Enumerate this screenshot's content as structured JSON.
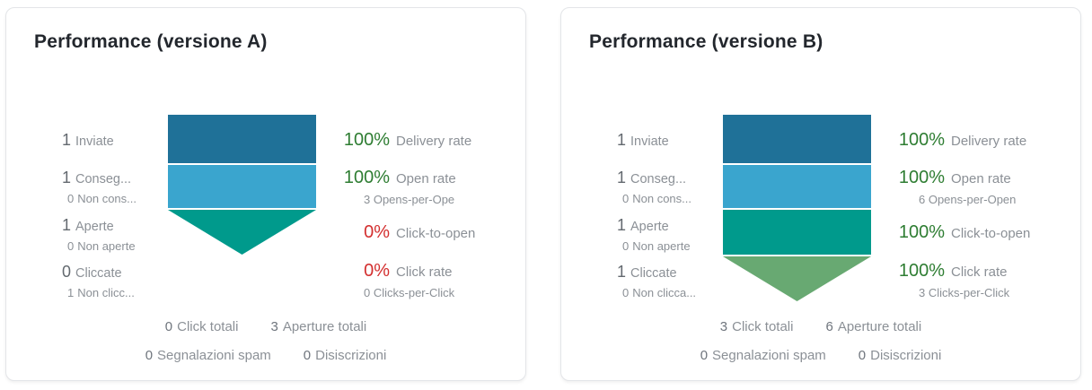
{
  "colors": {
    "positive": "#2e7d32",
    "negative": "#d32f2f",
    "funnel_blue_dark": "#1f7198",
    "funnel_blue_light": "#3aa5ce",
    "funnel_teal": "#009a8c",
    "funnel_green": "#68a972"
  },
  "cards": [
    {
      "title": "Performance (versione A)",
      "left_stats": [
        {
          "value": "1",
          "label": "Inviate"
        },
        {
          "value": "1",
          "label": "Conseg...",
          "sub_value": "0",
          "sub_label": "Non cons..."
        },
        {
          "value": "1",
          "label": "Aperte",
          "sub_value": "0",
          "sub_label": "Non aperte"
        },
        {
          "value": "0",
          "label": "Cliccate",
          "sub_value": "1",
          "sub_label": "Non clicc..."
        }
      ],
      "right_stats": [
        {
          "value": "100%",
          "label": "Delivery rate",
          "color": "#2e7d32"
        },
        {
          "value": "100%",
          "label": "Open rate",
          "color": "#2e7d32",
          "sub": "3 Opens-per-Ope"
        },
        {
          "value": "0%",
          "label": "Click-to-open",
          "color": "#d32f2f"
        },
        {
          "value": "0%",
          "label": "Click rate",
          "color": "#d32f2f",
          "sub": "0 Clicks-per-Click"
        }
      ],
      "funnel": {
        "segments": [
          {
            "shape": "bar",
            "color": "#1f7198"
          },
          {
            "shape": "bar",
            "color": "#3aa5ce"
          },
          {
            "shape": "triangle",
            "color": "#009a8c"
          }
        ]
      },
      "totals": [
        {
          "value": "0",
          "label": "Click totali"
        },
        {
          "value": "3",
          "label": "Aperture totali"
        },
        {
          "value": "0",
          "label": "Segnalazioni spam"
        },
        {
          "value": "0",
          "label": "Disiscrizioni"
        }
      ]
    },
    {
      "title": "Performance (versione B)",
      "left_stats": [
        {
          "value": "1",
          "label": "Inviate"
        },
        {
          "value": "1",
          "label": "Conseg...",
          "sub_value": "0",
          "sub_label": "Non cons..."
        },
        {
          "value": "1",
          "label": "Aperte",
          "sub_value": "0",
          "sub_label": "Non aperte"
        },
        {
          "value": "1",
          "label": "Cliccate",
          "sub_value": "0",
          "sub_label": "Non clicca..."
        }
      ],
      "right_stats": [
        {
          "value": "100%",
          "label": "Delivery rate",
          "color": "#2e7d32"
        },
        {
          "value": "100%",
          "label": "Open rate",
          "color": "#2e7d32",
          "sub": "6 Opens-per-Open"
        },
        {
          "value": "100%",
          "label": "Click-to-open",
          "color": "#2e7d32"
        },
        {
          "value": "100%",
          "label": "Click rate",
          "color": "#2e7d32",
          "sub": "3 Clicks-per-Click"
        }
      ],
      "funnel": {
        "segments": [
          {
            "shape": "bar",
            "color": "#1f7198"
          },
          {
            "shape": "bar",
            "color": "#3aa5ce"
          },
          {
            "shape": "bar",
            "color": "#009a8c"
          },
          {
            "shape": "triangle",
            "color": "#68a972"
          }
        ]
      },
      "totals": [
        {
          "value": "3",
          "label": "Click totali"
        },
        {
          "value": "6",
          "label": "Aperture totali"
        },
        {
          "value": "0",
          "label": "Segnalazioni spam"
        },
        {
          "value": "0",
          "label": "Disiscrizioni"
        }
      ]
    }
  ],
  "chart_data": [
    {
      "type": "funnel",
      "title": "Performance (versione A)",
      "stages": [
        {
          "label": "Inviate",
          "value": 1
        },
        {
          "label": "Conseg...",
          "value": 1,
          "complement_value": 0,
          "complement_label": "Non cons..."
        },
        {
          "label": "Aperte",
          "value": 1,
          "complement_value": 0,
          "complement_label": "Non aperte"
        },
        {
          "label": "Cliccate",
          "value": 0,
          "complement_value": 1,
          "complement_label": "Non clicc..."
        }
      ],
      "rates": [
        {
          "label": "Delivery rate",
          "value_pct": 100
        },
        {
          "label": "Open rate",
          "value_pct": 100,
          "sub": "3 Opens-per-Ope"
        },
        {
          "label": "Click-to-open",
          "value_pct": 0
        },
        {
          "label": "Click rate",
          "value_pct": 0,
          "sub": "0 Clicks-per-Click"
        }
      ],
      "totals": {
        "click_totali": 0,
        "aperture_totali": 3,
        "segnalazioni_spam": 0,
        "disiscrizioni": 0
      }
    },
    {
      "type": "funnel",
      "title": "Performance (versione B)",
      "stages": [
        {
          "label": "Inviate",
          "value": 1
        },
        {
          "label": "Conseg...",
          "value": 1,
          "complement_value": 0,
          "complement_label": "Non cons..."
        },
        {
          "label": "Aperte",
          "value": 1,
          "complement_value": 0,
          "complement_label": "Non aperte"
        },
        {
          "label": "Cliccate",
          "value": 1,
          "complement_value": 0,
          "complement_label": "Non clicca..."
        }
      ],
      "rates": [
        {
          "label": "Delivery rate",
          "value_pct": 100
        },
        {
          "label": "Open rate",
          "value_pct": 100,
          "sub": "6 Opens-per-Open"
        },
        {
          "label": "Click-to-open",
          "value_pct": 100
        },
        {
          "label": "Click rate",
          "value_pct": 100,
          "sub": "3 Clicks-per-Click"
        }
      ],
      "totals": {
        "click_totali": 3,
        "aperture_totali": 6,
        "segnalazioni_spam": 0,
        "disiscrizioni": 0
      }
    }
  ]
}
